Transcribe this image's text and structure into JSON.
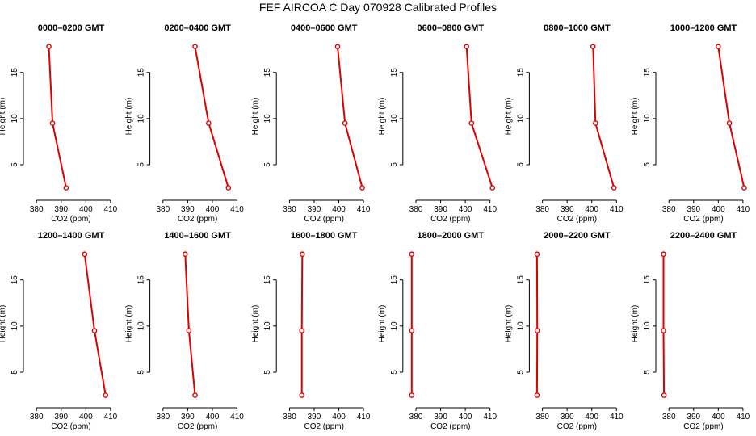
{
  "title": "FEF AIRCOA C  Day 070928  Calibrated Profiles",
  "colors": {
    "series": "#dd0000",
    "axis": "#000000",
    "background": "#ffffff"
  },
  "chart_data": [
    {
      "type": "line",
      "title": "0000–0200 GMT",
      "xlabel": "CO2 (ppm)",
      "ylabel": "Height (m)",
      "xlim": [
        376,
        412
      ],
      "ylim": [
        1.5,
        19
      ],
      "xticks": [
        380,
        390,
        400,
        410
      ],
      "yticks": [
        5,
        10,
        15
      ],
      "x": [
        385.0,
        386.5,
        392.0
      ],
      "y": [
        17.8,
        9.5,
        2.5
      ]
    },
    {
      "type": "line",
      "title": "0200–0400 GMT",
      "xlabel": "CO2 (ppm)",
      "ylabel": "Height (m)",
      "xlim": [
        376,
        412
      ],
      "ylim": [
        1.5,
        19
      ],
      "xticks": [
        380,
        390,
        400,
        410
      ],
      "yticks": [
        5,
        10,
        15
      ],
      "x": [
        393.0,
        398.5,
        406.5
      ],
      "y": [
        17.8,
        9.5,
        2.5
      ]
    },
    {
      "type": "line",
      "title": "0400–0600 GMT",
      "xlabel": "CO2 (ppm)",
      "ylabel": "Height (m)",
      "xlim": [
        376,
        412
      ],
      "ylim": [
        1.5,
        19
      ],
      "xticks": [
        380,
        390,
        400,
        410
      ],
      "yticks": [
        5,
        10,
        15
      ],
      "x": [
        399.5,
        402.5,
        409.5
      ],
      "y": [
        17.8,
        9.5,
        2.5
      ]
    },
    {
      "type": "line",
      "title": "0600–0800 GMT",
      "xlabel": "CO2 (ppm)",
      "ylabel": "Height (m)",
      "xlim": [
        376,
        412
      ],
      "ylim": [
        1.5,
        19
      ],
      "xticks": [
        380,
        390,
        400,
        410
      ],
      "yticks": [
        5,
        10,
        15
      ],
      "x": [
        400.5,
        402.5,
        411.0
      ],
      "y": [
        17.8,
        9.5,
        2.5
      ]
    },
    {
      "type": "line",
      "title": "0800–1000 GMT",
      "xlabel": "CO2 (ppm)",
      "ylabel": "Height (m)",
      "xlim": [
        376,
        412
      ],
      "ylim": [
        1.5,
        19
      ],
      "xticks": [
        380,
        390,
        400,
        410
      ],
      "yticks": [
        5,
        10,
        15
      ],
      "x": [
        400.5,
        401.5,
        409.0
      ],
      "y": [
        17.8,
        9.5,
        2.5
      ]
    },
    {
      "type": "line",
      "title": "1000–1200 GMT",
      "xlabel": "CO2 (ppm)",
      "ylabel": "Height (m)",
      "xlim": [
        376,
        412
      ],
      "ylim": [
        1.5,
        19
      ],
      "xticks": [
        380,
        390,
        400,
        410
      ],
      "yticks": [
        5,
        10,
        15
      ],
      "x": [
        400.0,
        404.5,
        410.5
      ],
      "y": [
        17.8,
        9.5,
        2.5
      ]
    },
    {
      "type": "line",
      "title": "1200–1400 GMT",
      "xlabel": "CO2 (ppm)",
      "ylabel": "Height (m)",
      "xlim": [
        376,
        412
      ],
      "ylim": [
        1.5,
        19
      ],
      "xticks": [
        380,
        390,
        400,
        410
      ],
      "yticks": [
        5,
        10,
        15
      ],
      "x": [
        399.5,
        403.5,
        408.0
      ],
      "y": [
        17.8,
        9.5,
        2.5
      ]
    },
    {
      "type": "line",
      "title": "1400–1600 GMT",
      "xlabel": "CO2 (ppm)",
      "ylabel": "Height (m)",
      "xlim": [
        376,
        412
      ],
      "ylim": [
        1.5,
        19
      ],
      "xticks": [
        380,
        390,
        400,
        410
      ],
      "yticks": [
        5,
        10,
        15
      ],
      "x": [
        389.0,
        390.5,
        393.0
      ],
      "y": [
        17.8,
        9.5,
        2.5
      ]
    },
    {
      "type": "line",
      "title": "1600–1800 GMT",
      "xlabel": "CO2 (ppm)",
      "ylabel": "Height (m)",
      "xlim": [
        376,
        412
      ],
      "ylim": [
        1.5,
        19
      ],
      "xticks": [
        380,
        390,
        400,
        410
      ],
      "yticks": [
        5,
        10,
        15
      ],
      "x": [
        385.2,
        385.0,
        385.0
      ],
      "y": [
        17.8,
        9.5,
        2.5
      ]
    },
    {
      "type": "line",
      "title": "1800–2000 GMT",
      "xlabel": "CO2 (ppm)",
      "ylabel": "Height (m)",
      "xlim": [
        376,
        412
      ],
      "ylim": [
        1.5,
        19
      ],
      "xticks": [
        380,
        390,
        400,
        410
      ],
      "yticks": [
        5,
        10,
        15
      ],
      "x": [
        378.3,
        378.3,
        378.3
      ],
      "y": [
        17.8,
        9.5,
        2.5
      ]
    },
    {
      "type": "line",
      "title": "2000–2200 GMT",
      "xlabel": "CO2 (ppm)",
      "ylabel": "Height (m)",
      "xlim": [
        376,
        412
      ],
      "ylim": [
        1.5,
        19
      ],
      "xticks": [
        380,
        390,
        400,
        410
      ],
      "yticks": [
        5,
        10,
        15
      ],
      "x": [
        377.8,
        377.9,
        377.8
      ],
      "y": [
        17.8,
        9.5,
        2.5
      ]
    },
    {
      "type": "line",
      "title": "2200–2400 GMT",
      "xlabel": "CO2 (ppm)",
      "ylabel": "Height (m)",
      "xlim": [
        376,
        412
      ],
      "ylim": [
        1.5,
        19
      ],
      "xticks": [
        380,
        390,
        400,
        410
      ],
      "yticks": [
        5,
        10,
        15
      ],
      "x": [
        377.8,
        377.8,
        378.0
      ],
      "y": [
        17.8,
        9.5,
        2.5
      ]
    }
  ]
}
